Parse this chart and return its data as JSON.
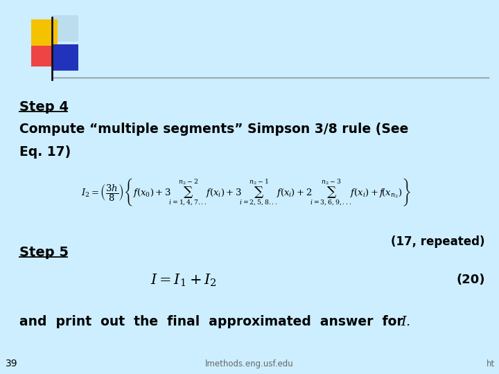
{
  "background_color": "#cceeff",
  "slide_number": "39",
  "footer_text": "lmethods.eng.usf.edu",
  "footer_right": "ht",
  "logo_yellow": "#f5c200",
  "logo_pink": "#ee4444",
  "logo_blue_dark": "#2233bb",
  "logo_blue_light": "#bbddee",
  "step4_label": "Step 4",
  "step4_text_line1": "Compute “multiple segments” Simpson 3/8 rule (See",
  "step4_text_line2": "Eq. 17)",
  "eq17_label": "(17, repeated)",
  "step5_label": "Step 5",
  "eq20_label": "(20)",
  "final_text": "and  print  out  the  final  approximated  answer  for  ",
  "formula1": "I_2 = \\left(\\dfrac{3h}{8}\\right)\\left\\{f\\left(x_0\\right)+3\\!\\sum_{i=1,4,7...}^{n_2-2}\\!f\\left(x_i\\right)+3\\!\\sum_{i=2,5,8...}^{n_2-1}\\!f\\left(x_i\\right)+2\\!\\sum_{i=3,6,9,...}^{n_2-3}\\!f\\left(x_i\\right)+f\\!\\left(x_{n_2}\\right)\\right\\}",
  "formula2": "I = I_1 + I_2"
}
